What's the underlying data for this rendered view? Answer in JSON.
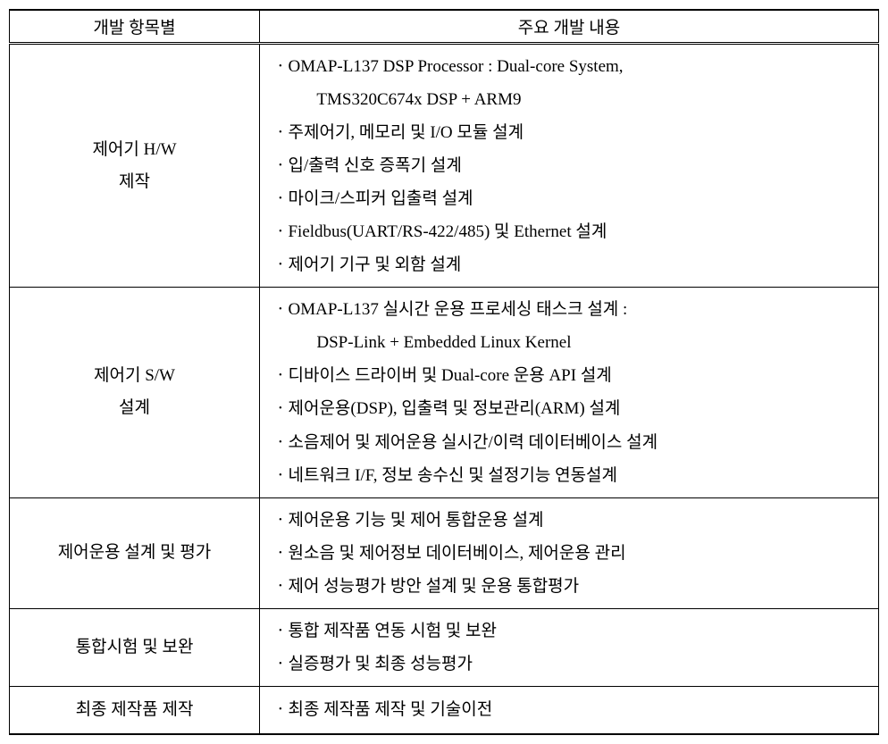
{
  "header": {
    "col1": "개발 항목별",
    "col2": "주요 개발 내용"
  },
  "rows": [
    {
      "category": "제어기 H/W<br>제작",
      "items": [
        "OMAP-L137 DSP Processor : Dual-core System,<sub>TMS320C674x DSP + ARM9</sub>",
        "주제어기, 메모리 및 I/O 모듈 설계",
        "입/출력 신호 증폭기 설계",
        "마이크/스피커 입출력 설계",
        "Fieldbus(UART/RS-422/485) 및 Ethernet 설계",
        "제어기 기구 및 외함 설계"
      ]
    },
    {
      "category": "제어기 S/W<br>설계",
      "items": [
        "OMAP-L137 실시간 운용 프로세싱 태스크 설계 :<sub>DSP-Link + Embedded Linux Kernel</sub>",
        "디바이스 드라이버 및 Dual-core 운용 API 설계",
        "제어운용(DSP), 입출력 및 정보관리(ARM) 설계",
        "소음제어 및 제어운용 실시간/이력 데이터베이스 설계",
        "네트워크 I/F, 정보 송수신 및 설정기능 연동설계"
      ]
    },
    {
      "category": "제어운용 설계 및 평가",
      "items": [
        "제어운용 기능 및 제어 통합운용 설계",
        "원소음 및 제어정보 데이터베이스, 제어운용 관리",
        "제어 성능평가 방안 설계 및 운용 통합평가"
      ]
    },
    {
      "category": "통합시험 및 보완",
      "items": [
        "통합 제작품 연동 시험 및 보완",
        "실증평가 및 최종 성능평가"
      ]
    },
    {
      "category": "최종 제작품 제작",
      "items": [
        "최종 제작품 제작 및 기술이전"
      ]
    }
  ],
  "bullet": "ㆍ"
}
